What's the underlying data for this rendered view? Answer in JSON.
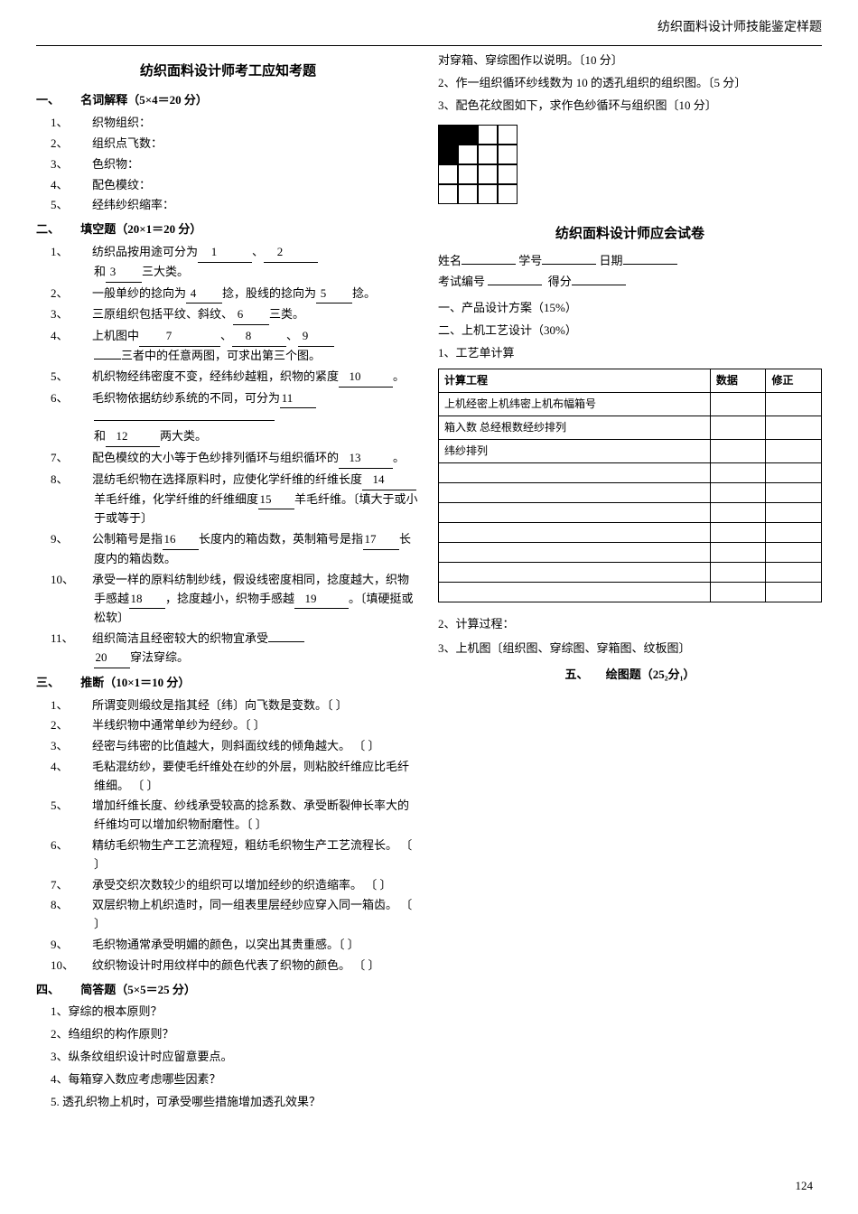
{
  "header_right": "纺织面料设计师技能鉴定样题",
  "left": {
    "title": "纺织面料设计师考工应知考题",
    "sec1": {
      "label": "一、",
      "title": "名词解释（5×4＝20 分）",
      "items": [
        "织物组织：",
        "组织点飞数：",
        "色织物：",
        "配色模纹：",
        "经纬纱织缩率："
      ]
    },
    "sec2": {
      "label": "二、",
      "title": "填空题（20×1＝20 分）",
      "q1_a": "纺织品按用途可分为",
      "q1_b": "、",
      "q1_c": "和",
      "q1_d": "三大类。",
      "q2_a": "一般单纱的捻向为",
      "q2_b": "捻，股线的捻向为",
      "q2_c": "捻。",
      "q3_a": "三原组织包括平纹、斜纹、",
      "q3_b": "三类。",
      "q4_a": "上机图中",
      "q4_b": "、",
      "q4_c": "、",
      "q4_d": "三者中的任意两图，可求出第三个图。",
      "q5_a": "机织物经纬密度不变，经纬纱越粗，织物的紧度",
      "q5_b": "。",
      "q6_a": "毛织物依据纺纱系统的不同，可分为",
      "q6_b": "和",
      "q6_c": "两大类。",
      "q7_a": "配色模纹的大小等于色纱排列循环与组织循环的",
      "q7_b": "。",
      "q8_a": "混纺毛织物在选择原料时，应使化学纤维的纤维长度",
      "q8_b": "羊毛纤维，化学纤维的纤维细度",
      "q8_c": "羊毛纤维。〔填大于或小于或等于〕",
      "q9_a": "公制箱号是指",
      "q9_b": "长度内的箱齿数，英制箱号是指",
      "q9_c": "长度内的箱齿数。",
      "q10_a": "承受一样的原料纺制纱线，假设线密度相同，捻度越大，织物手感越",
      "q10_b": "，捻度越小，织物手感越",
      "q10_c": "。〔填硬挺或松软〕",
      "q11_a": "组织简洁且经密较大的织物宜承受",
      "q11_b": "穿法穿综。",
      "blanks": {
        "b1": "1",
        "b2": "2",
        "b3": "3",
        "b4": "4",
        "b5": "5",
        "b6": "6",
        "b7": "7",
        "b8": "8",
        "b9": "9",
        "b10": "10",
        "b11": "11",
        "b12": "12",
        "b13": "13",
        "b14": "14",
        "b15": "15",
        "b16": "16",
        "b17": "17",
        "b18": "18",
        "b19": "19",
        "b20": "20"
      }
    },
    "sec3": {
      "label": "三、",
      "title": "推断（10×1＝10 分）",
      "items": [
        "所谓变则缎纹是指其经〔纬〕向飞数是变数。〔  〕",
        "半线织物中通常单纱为经纱。〔  〕",
        "经密与纬密的比值越大，则斜面纹线的倾角越大。                                  〔  〕",
        "毛粘混纺纱，要使毛纤维处在纱的外层，则粘胶纤维应比毛纤维细。      〔  〕",
        "增加纤维长度、纱线承受较高的捻系数、承受断裂伸长率大的纤维均可以增加织物耐磨性。〔  〕",
        "精纺毛织物生产工艺流程短，粗纺毛织物生产工艺流程长。                      〔  〕",
        "承受交织次数较少的组织可以增加经纱的织造缩率。                                  〔  〕",
        "双层织物上机织造时，同一组表里层经纱应穿入同一箱齿。                      〔  〕",
        "毛织物通常承受明媚的颜色，以突出其贵重感。〔  〕",
        "纹织物设计时用纹样中的颜色代表了织物的颜色。                              〔    〕"
      ]
    },
    "sec4": {
      "label": "四、",
      "title": "简答题（5×5＝25 分）",
      "items": [
        "1、穿综的根本原则？",
        "2、绉组织的构作原则？",
        "3、纵条纹组织设计时应留意要点。",
        "4、每箱穿入数应考虑哪些因素？",
        "5. 透孔织物上机时，可承受哪些措施增加透孔效果？"
      ]
    }
  },
  "right": {
    "top": [
      "对穿箱、穿综图作以说明。〔10 分〕",
      "2、作一组织循环纱线数为 10 的透孔组织的组织图。〔5 分〕",
      "3、配色花纹图如下，求作色纱循环与组织图〔10 分〕"
    ],
    "pattern": {
      "rows": 4,
      "cols": 4,
      "grid": [
        [
          1,
          1,
          0,
          0
        ],
        [
          1,
          0,
          0,
          0
        ],
        [
          0,
          0,
          0,
          0
        ],
        [
          0,
          0,
          0,
          0
        ]
      ]
    },
    "exam_title": "纺织面料设计师应会试卷",
    "form": {
      "name_label": "姓名",
      "id_label": "学号",
      "date_label": "日期",
      "exam_no_label": "考试编号",
      "score_label": "得分"
    },
    "parts": [
      "一、产品设计方案（15%）",
      "二、上机工艺设计（30%）",
      "1、工艺单计算"
    ],
    "table": {
      "headers": [
        "计算工程",
        "数据",
        "修正"
      ],
      "rows": [
        [
          "上机经密上机纬密上机布幅箱号",
          "",
          ""
        ],
        [
          "箱入数 总经根数经纱排列",
          "",
          ""
        ],
        [
          "纬纱排列",
          "",
          ""
        ],
        [
          "",
          "",
          ""
        ],
        [
          "",
          "",
          ""
        ],
        [
          "",
          "",
          ""
        ],
        [
          "",
          "",
          ""
        ],
        [
          "",
          "",
          ""
        ],
        [
          "",
          "",
          ""
        ],
        [
          "",
          "",
          ""
        ]
      ]
    },
    "after_table": [
      "2、计算过程：",
      "3、上机图〔组织图、穿综图、穿箱图、纹板图〕"
    ],
    "sec5": {
      "label": "五、",
      "title": "绘图题（25₂分₁）"
    }
  },
  "page_num": "124"
}
